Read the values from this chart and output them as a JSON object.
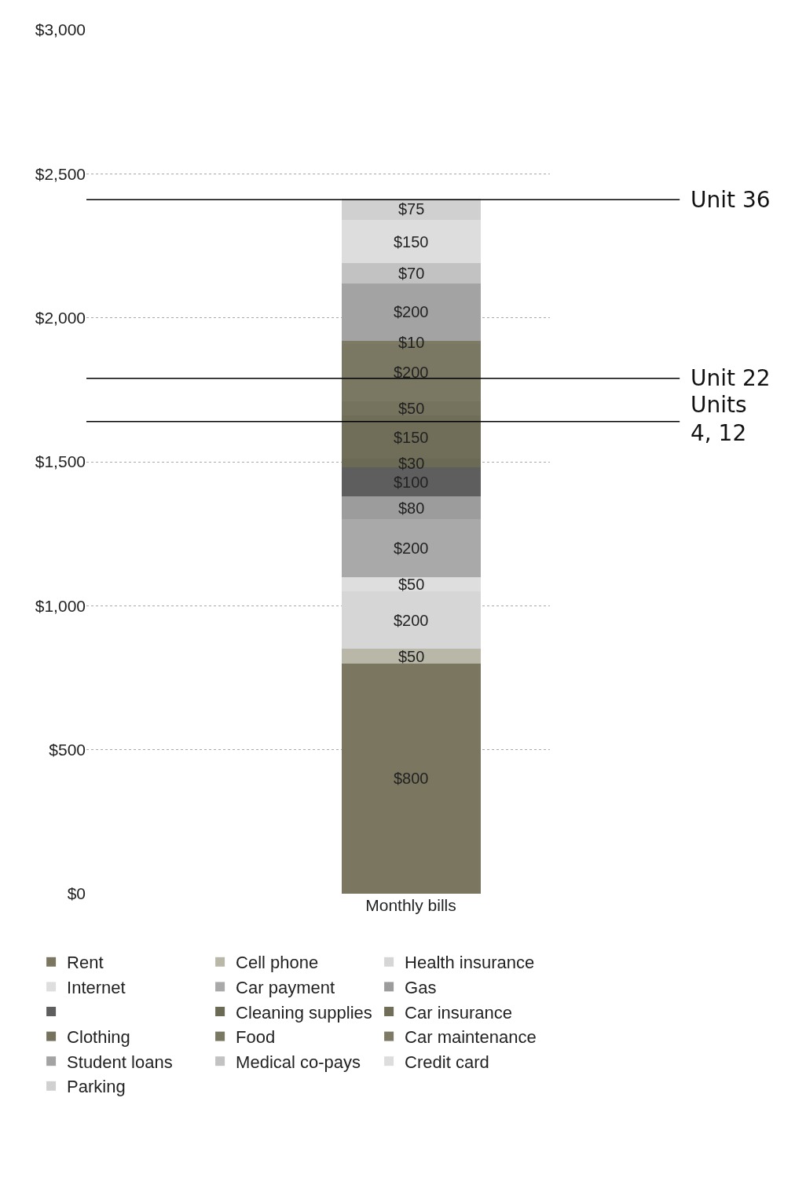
{
  "chart_data": {
    "type": "bar",
    "stacked": true,
    "categories": [
      "Monthly bills"
    ],
    "ylim": [
      0,
      3000
    ],
    "yticks": [
      {
        "value": 0,
        "label": "$0"
      },
      {
        "value": 500,
        "label": "$500"
      },
      {
        "value": 1000,
        "label": "$1,000"
      },
      {
        "value": 1500,
        "label": "$1,500"
      },
      {
        "value": 2000,
        "label": "$2,000"
      },
      {
        "value": 2500,
        "label": "$2,500"
      },
      {
        "value": 3000,
        "label": "$3,000"
      }
    ],
    "grid": "y",
    "legend": "bottom",
    "series": [
      {
        "name": "Rent",
        "color": "#7a7660",
        "values": [
          800
        ],
        "value_labels": [
          "$800"
        ]
      },
      {
        "name": "Cell phone",
        "color": "#b9b8a8",
        "values": [
          50
        ],
        "value_labels": [
          "$50"
        ]
      },
      {
        "name": "Health insurance",
        "color": "#d6d6d6",
        "values": [
          200
        ],
        "value_labels": [
          "$200"
        ]
      },
      {
        "name": "Internet",
        "color": "#dedede",
        "values": [
          50
        ],
        "value_labels": [
          "$50"
        ]
      },
      {
        "name": "Car payment",
        "color": "#a9a9a9",
        "values": [
          200
        ],
        "value_labels": [
          "$200"
        ]
      },
      {
        "name": "Gas",
        "color": "#9c9c9c",
        "values": [
          80
        ],
        "value_labels": [
          "$80"
        ]
      },
      {
        "color": "#5e5e5e",
        "values": [
          100
        ],
        "value_labels": [
          "$100"
        ]
      },
      {
        "name": "Cleaning supplies",
        "color": "#6b6a55",
        "values": [
          30
        ],
        "value_labels": [
          "$30"
        ]
      },
      {
        "name": "Car insurance",
        "color": "#706e59",
        "values": [
          150
        ],
        "value_labels": [
          "$150"
        ]
      },
      {
        "name": "Clothing",
        "color": "#75735d",
        "values": [
          50
        ],
        "value_labels": [
          "$50"
        ]
      },
      {
        "name": "Food",
        "color": "#7a7862",
        "values": [
          200
        ],
        "value_labels": [
          "$200"
        ]
      },
      {
        "name": "Car maintenance",
        "color": "#7d7b65",
        "values": [
          10
        ],
        "value_labels": [
          "$10"
        ]
      },
      {
        "name": "Student loans",
        "color": "#a3a3a3",
        "values": [
          200
        ],
        "value_labels": [
          "$200"
        ]
      },
      {
        "name": "Medical co-pays",
        "color": "#c2c2c2",
        "values": [
          70
        ],
        "value_labels": [
          "$70"
        ]
      },
      {
        "name": "Credit card",
        "color": "#dddddd",
        "values": [
          150
        ],
        "value_labels": [
          "$150"
        ]
      },
      {
        "name": "Parking",
        "color": "#d0d0d0",
        "values": [
          75
        ],
        "value_labels": [
          "$75"
        ]
      }
    ],
    "ref_lines": [
      {
        "axis": "y",
        "value": 2410,
        "label": "Unit 36",
        "color": "#000000"
      },
      {
        "axis": "y",
        "value": 1790,
        "label": "Unit 22",
        "color": "#000000"
      },
      {
        "axis": "y",
        "value": 1640,
        "label": "Units\n4, 12",
        "color": "#000000"
      }
    ]
  }
}
